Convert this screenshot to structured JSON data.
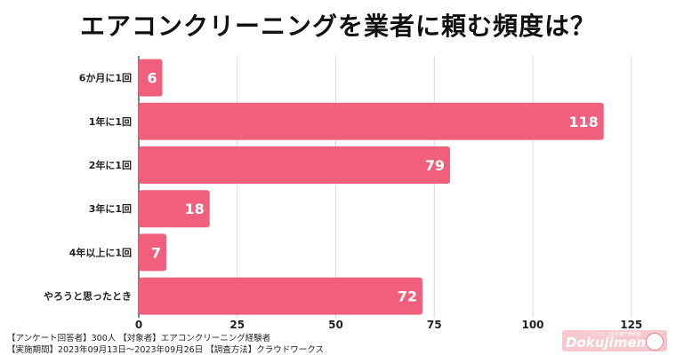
{
  "chart_data": {
    "type": "bar",
    "orientation": "horizontal",
    "title": "エアコンクリーニングを業者に頼む頻度は？",
    "categories": [
      "6か月に1回",
      "1年に1回",
      "2年に1回",
      "3年に1回",
      "4年以上に1回",
      "やろうと思ったとき"
    ],
    "values": [
      6,
      118,
      79,
      18,
      7,
      72
    ],
    "xlim": [
      0,
      130
    ],
    "xticks": [
      0,
      25,
      50,
      75,
      100,
      125
    ],
    "grid": true,
    "bar_color": "#f0607c",
    "label_color": "#ffffff"
  },
  "footer": {
    "line1": "【アンケート回答者】300人 【対象者】エアコンクリーニング経験者",
    "line2": "【実施期間】2023年09月13日〜2023年09月26日 【調査方法】クラウドワークス"
  },
  "logo": {
    "main": "Dokujimemo",
    "small": "ニコニコ家計簿で節約術"
  }
}
